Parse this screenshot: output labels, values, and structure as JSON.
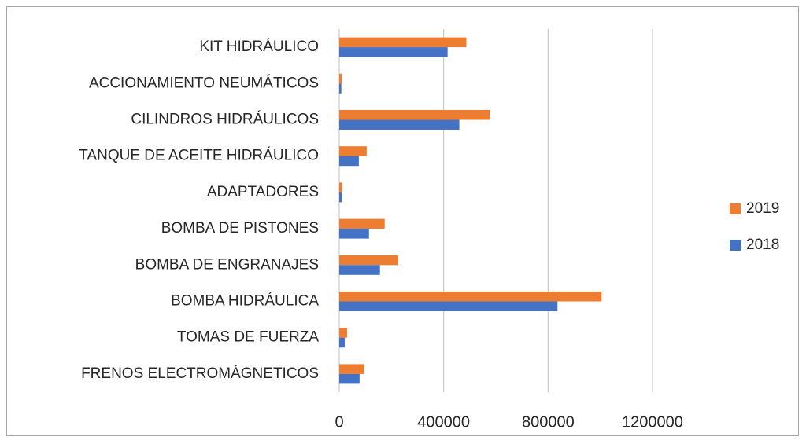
{
  "chart_data": {
    "type": "hbar",
    "categories": [
      "KIT HIDRÁULICO",
      "ACCIONAMIENTO NEUMÁTICOS",
      "CILINDROS HIDRÁULICOS",
      "TANQUE DE ACEITE HIDRÁULICO",
      "ADAPTADORES",
      "BOMBA DE PISTONES",
      "BOMBA DE ENGRANAJES",
      "BOMBA HIDRÁULICA",
      "TOMAS DE FUERZA",
      "FRENOS ELECTROMÁGNETICOS"
    ],
    "series": [
      {
        "name": "2019",
        "color": "#ed7d31",
        "values": [
          487000,
          10000,
          577000,
          105000,
          12000,
          174000,
          226000,
          1005000,
          30000,
          96000
        ]
      },
      {
        "name": "2018",
        "color": "#4472c4",
        "values": [
          415000,
          8000,
          460000,
          75000,
          10000,
          114000,
          156000,
          836000,
          21000,
          78000
        ]
      }
    ],
    "xlim": [
      0,
      1200000
    ],
    "xticks": [
      0,
      400000,
      800000,
      1200000
    ],
    "grid": true,
    "legend": "right"
  }
}
